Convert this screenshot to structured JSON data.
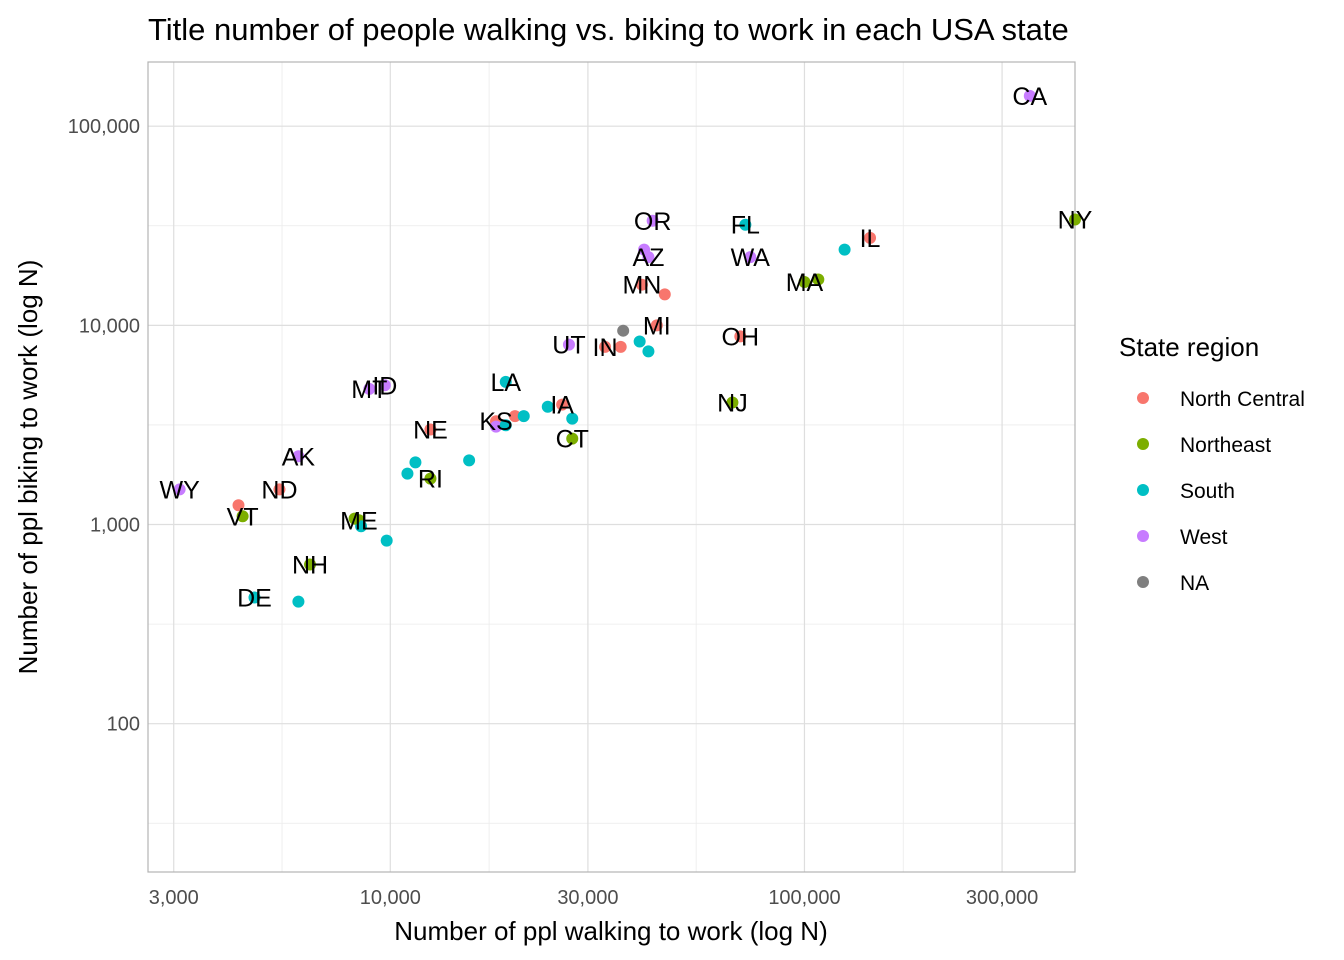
{
  "chart_data": {
    "type": "scatter",
    "title": "Title number of people walking vs. biking to work in each USA state",
    "xlabel": "Number of ppl walking to work (log N)",
    "ylabel": "Number of ppl biking to work (log N)",
    "x_scale": "log10",
    "y_scale": "log10",
    "xlim": [
      2600,
      450000
    ],
    "ylim": [
      18,
      210000
    ],
    "x_ticks": [
      3000,
      10000,
      30000,
      100000,
      300000
    ],
    "x_tick_labels": [
      "3,000",
      "10,000",
      "30,000",
      "100,000",
      "300,000"
    ],
    "y_ticks": [
      100,
      1000,
      10000,
      100000
    ],
    "y_tick_labels": [
      "100",
      "1,000",
      "10,000",
      "100,000"
    ],
    "grid": true,
    "legend_position": "right",
    "legend": {
      "title": "State region",
      "entries": [
        {
          "name": "North Central",
          "color": "#f8766d"
        },
        {
          "name": "Northeast",
          "color": "#7cae00"
        },
        {
          "name": "South",
          "color": "#00bfc4"
        },
        {
          "name": "West",
          "color": "#c77cff"
        },
        {
          "name": "NA",
          "color": "#7f7f7f"
        }
      ]
    },
    "points": [
      {
        "label": "CA",
        "region": "West",
        "x": 350000,
        "y": 142000
      },
      {
        "label": "NY",
        "region": "Northeast",
        "x": 450000,
        "y": 34000
      },
      {
        "label": "IL",
        "region": "North Central",
        "x": 144000,
        "y": 27500
      },
      {
        "label": "FL",
        "region": "South",
        "x": 72000,
        "y": 32000
      },
      {
        "label": "OR",
        "region": "West",
        "x": 43000,
        "y": 33500
      },
      {
        "label": "AZ",
        "region": "West",
        "x": 42000,
        "y": 22000
      },
      {
        "label": "WA",
        "region": "West",
        "x": 74000,
        "y": 22000
      },
      {
        "label": "MA",
        "region": "Northeast",
        "x": 100000,
        "y": 16500
      },
      {
        "label": "MN",
        "region": "North Central",
        "x": 40500,
        "y": 16000
      },
      {
        "label": "MI",
        "region": "North Central",
        "x": 44000,
        "y": 10000
      },
      {
        "label": "OH",
        "region": "North Central",
        "x": 70000,
        "y": 8800
      },
      {
        "label": "IN",
        "region": "North Central",
        "x": 33000,
        "y": 7800
      },
      {
        "label": "UT",
        "region": "West",
        "x": 27000,
        "y": 8000
      },
      {
        "label": "NJ",
        "region": "Northeast",
        "x": 67000,
        "y": 4100
      },
      {
        "label": "LA",
        "region": "South",
        "x": 19000,
        "y": 5200
      },
      {
        "label": "IA",
        "region": "North Central",
        "x": 26000,
        "y": 4000
      },
      {
        "label": "ID",
        "region": "West",
        "x": 9700,
        "y": 5000
      },
      {
        "label": "MT",
        "region": "West",
        "x": 8900,
        "y": 4800
      },
      {
        "label": "KS",
        "region": "North Central",
        "x": 18000,
        "y": 3300
      },
      {
        "label": "NE",
        "region": "North Central",
        "x": 12500,
        "y": 3000
      },
      {
        "label": "CT",
        "region": "Northeast",
        "x": 27500,
        "y": 2700
      },
      {
        "label": "RI",
        "region": "Northeast",
        "x": 12500,
        "y": 1700
      },
      {
        "label": "AK",
        "region": "West",
        "x": 6000,
        "y": 2200
      },
      {
        "label": "WY",
        "region": "West",
        "x": 3100,
        "y": 1500
      },
      {
        "label": "ND",
        "region": "North Central",
        "x": 5400,
        "y": 1500
      },
      {
        "label": "VT",
        "region": "Northeast",
        "x": 4400,
        "y": 1100
      },
      {
        "label": "ME",
        "region": "Northeast",
        "x": 8400,
        "y": 1050
      },
      {
        "label": "NH",
        "region": "Northeast",
        "x": 6400,
        "y": 630
      },
      {
        "label": "DE",
        "region": "South",
        "x": 4700,
        "y": 430
      },
      {
        "label": null,
        "region": "North Central",
        "x": 46000,
        "y": 14300
      },
      {
        "label": null,
        "region": "North Central",
        "x": 4300,
        "y": 1250
      },
      {
        "label": null,
        "region": "North Central",
        "x": 36000,
        "y": 7800
      },
      {
        "label": null,
        "region": "North Central",
        "x": 20000,
        "y": 3500
      },
      {
        "label": null,
        "region": "NA",
        "x": 36500,
        "y": 9400
      },
      {
        "label": null,
        "region": "West",
        "x": 41000,
        "y": 24000
      },
      {
        "label": null,
        "region": "West",
        "x": 18000,
        "y": 3100
      },
      {
        "label": null,
        "region": "South",
        "x": 125000,
        "y": 24000
      },
      {
        "label": null,
        "region": "South",
        "x": 40000,
        "y": 8300
      },
      {
        "label": null,
        "region": "South",
        "x": 42000,
        "y": 7400
      },
      {
        "label": null,
        "region": "South",
        "x": 24000,
        "y": 3900
      },
      {
        "label": null,
        "region": "South",
        "x": 27500,
        "y": 3400
      },
      {
        "label": null,
        "region": "South",
        "x": 21000,
        "y": 3500
      },
      {
        "label": null,
        "region": "South",
        "x": 19000,
        "y": 3150
      },
      {
        "label": null,
        "region": "South",
        "x": 15500,
        "y": 2100
      },
      {
        "label": null,
        "region": "South",
        "x": 11500,
        "y": 2050
      },
      {
        "label": null,
        "region": "South",
        "x": 11000,
        "y": 1800
      },
      {
        "label": null,
        "region": "South",
        "x": 9800,
        "y": 830
      },
      {
        "label": null,
        "region": "South",
        "x": 6000,
        "y": 410
      },
      {
        "label": null,
        "region": "South",
        "x": 8500,
        "y": 980
      },
      {
        "label": null,
        "region": "Northeast",
        "x": 108000,
        "y": 17000
      },
      {
        "label": null,
        "region": "Northeast",
        "x": 8200,
        "y": 1070
      }
    ]
  }
}
